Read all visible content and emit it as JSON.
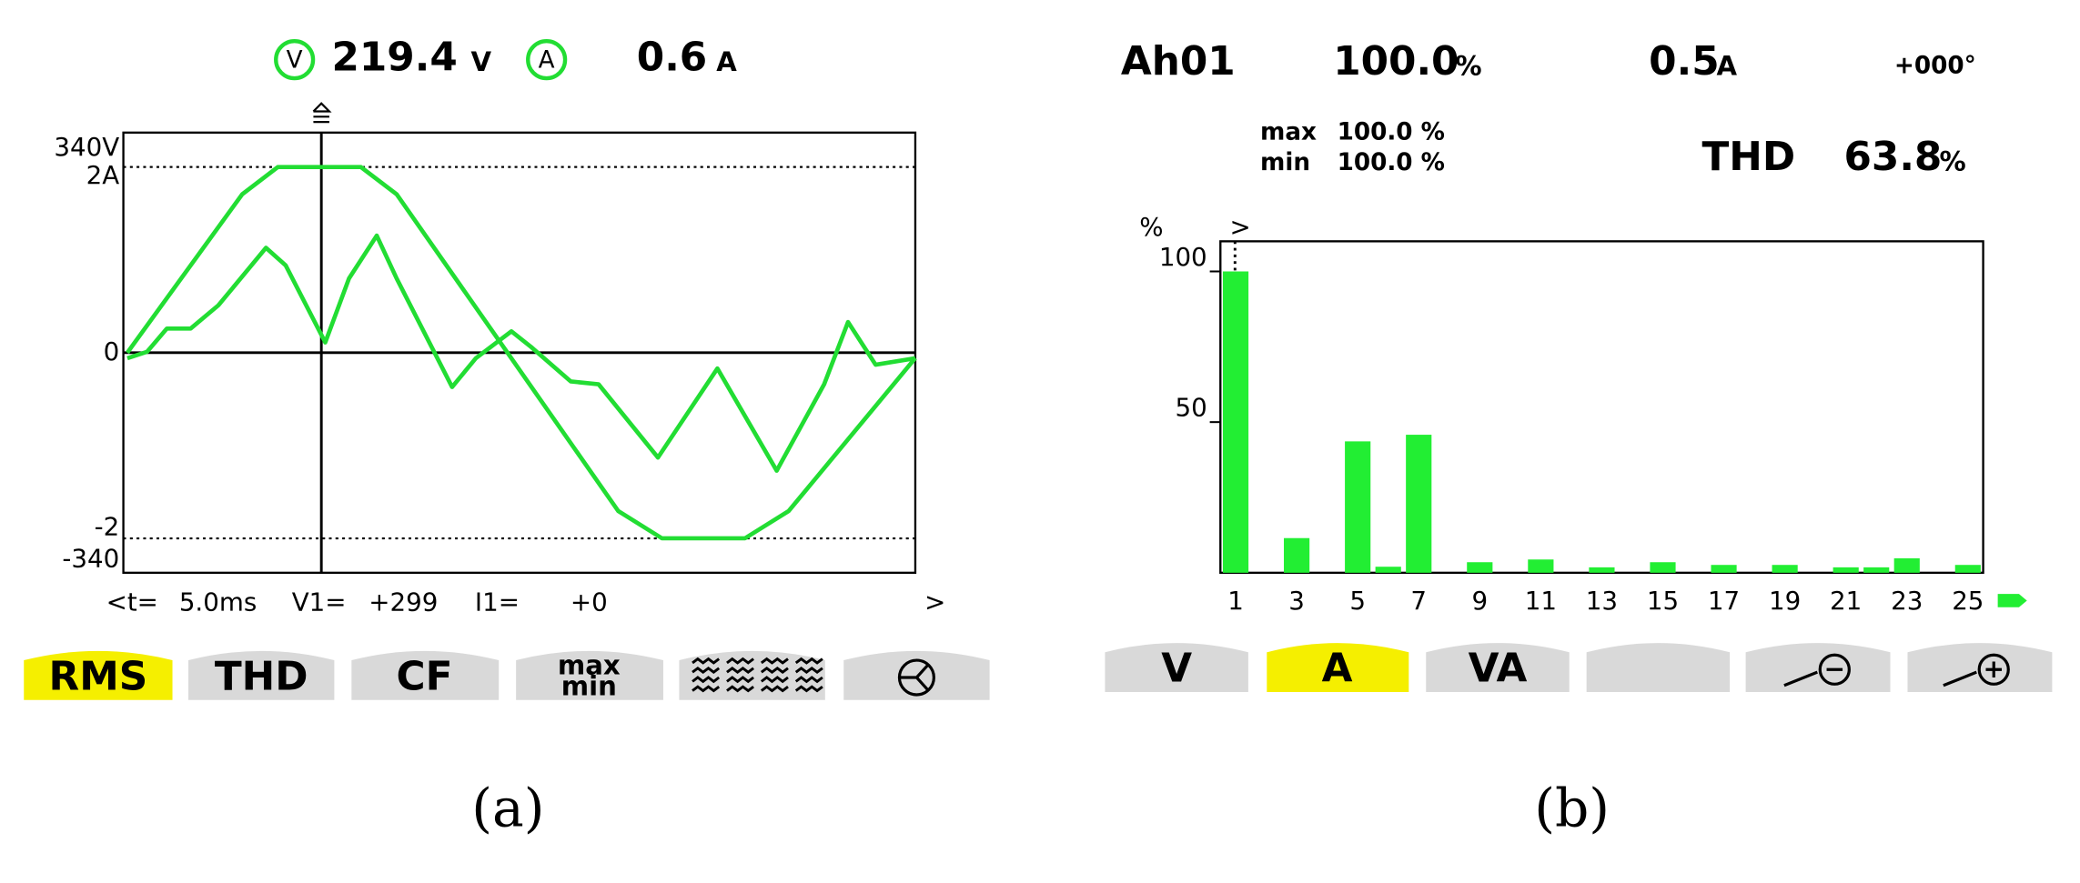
{
  "screen_a": {
    "v_label": "V",
    "voltage": "219.4",
    "v_unit": "V",
    "a_label": "A",
    "current": "0.6",
    "a_unit": "A",
    "status": {
      "t_label": "<t=",
      "v1_label": "V1=",
      "v1": "+299",
      "i1_label": "I1=",
      "i1": "+0",
      "next": ">"
    },
    "buttons": [
      "RMS",
      "THD",
      "CF"
    ],
    "maxmin_button": {
      "top": "max",
      "bottom": "min"
    }
  },
  "screen_b": {
    "harmonic": "Ah01",
    "percent": "100.0",
    "percent_unit": "%",
    "current": "0.5",
    "current_unit": "A",
    "phase": "+000°",
    "max_label": "max",
    "max": "100.0 %",
    "min_label": "min",
    "min": "100.0 %",
    "thd_label": "THD",
    "thd": "63.8",
    "thd_unit": "%",
    "cursor": ">",
    "buttons": [
      "V",
      "A",
      "VA"
    ]
  },
  "chart_data": [
    {
      "type": "line",
      "xlim": [
        0,
        20
      ],
      "ylim": [
        -403,
        403
      ],
      "yticks": [
        {
          "value": 340,
          "label": "340V"
        },
        0,
        {
          "value": -340,
          "label": "-340"
        }
      ],
      "y2lim": [
        -2.37,
        2.37
      ],
      "y2ticks": [
        {
          "value": 2,
          "label": "2A"
        },
        -2
      ],
      "cursor": {
        "value": 5,
        "label": "5.0ms"
      },
      "series": [
        {
          "color": "#22dd33",
          "x": [
            0.1,
            3.0,
            3.9,
            6.0,
            6.9,
            12.5,
            13.6,
            15.7,
            16.8,
            20
          ],
          "values": [
            0,
            290,
            340,
            340,
            290,
            -290,
            -340,
            -340,
            -290,
            -10
          ]
        },
        {
          "color": "#22dd33",
          "axis": "y2",
          "x": [
            0.1,
            0.6,
            1.1,
            1.7,
            2.4,
            3.6,
            4.1,
            5.1,
            5.7,
            6.4,
            6.9,
            8.3,
            8.9,
            9.8,
            10.3,
            11.3,
            12.0,
            13.5,
            15.0,
            16.5,
            17.7,
            18.3,
            19.0,
            20.0
          ],
          "values": [
            -0.06,
            0.01,
            0.26,
            0.26,
            0.51,
            1.13,
            0.94,
            0.11,
            0.8,
            1.26,
            0.8,
            -0.37,
            -0.06,
            0.23,
            0.06,
            -0.31,
            -0.34,
            -1.13,
            -0.17,
            -1.27,
            -0.34,
            0.33,
            -0.13,
            -0.06
          ]
        }
      ]
    },
    {
      "type": "bar",
      "y_label": "%",
      "categories": [
        "1",
        null,
        "3",
        null,
        "5",
        null,
        "7",
        null,
        "9",
        null,
        "11",
        null,
        "13",
        null,
        "15",
        null,
        "17",
        null,
        "19",
        null,
        "21",
        null,
        "23",
        null,
        "25"
      ],
      "values": [
        100,
        0,
        11.5,
        0,
        43.6,
        2,
        45.8,
        0,
        3.5,
        0,
        4.4,
        0,
        1.8,
        0,
        3.5,
        0,
        2.6,
        0,
        2.6,
        0,
        1.8,
        1.8,
        4.8,
        0,
        2.6
      ],
      "color": "#22ee33",
      "ylim": [
        0,
        110
      ],
      "yticks": [
        50,
        100
      ]
    }
  ],
  "captions": [
    "(a)",
    "(b)"
  ]
}
